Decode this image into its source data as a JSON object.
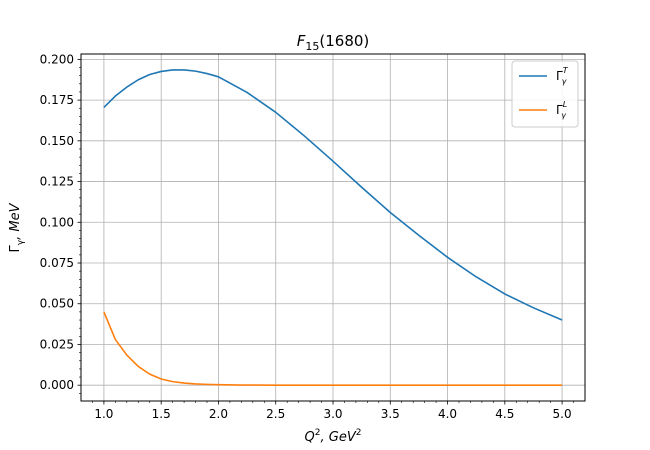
{
  "chart_data": {
    "type": "line",
    "title": {
      "main": "F",
      "sub": "15",
      "tail": "(1680)"
    },
    "xlabel": {
      "q": "Q",
      "sup1": "2",
      "mid": ", GeV",
      "sup2": "2"
    },
    "ylabel": {
      "main": "Γ",
      "sub": "γ",
      "tail": ", MeV"
    },
    "xlim": [
      0.8,
      5.2
    ],
    "ylim": [
      -0.0097,
      0.2033
    ],
    "x_ticks": [
      1.0,
      1.5,
      2.0,
      2.5,
      3.0,
      3.5,
      4.0,
      4.5,
      5.0
    ],
    "x_tick_labels": [
      "1.0",
      "1.5",
      "2.0",
      "2.5",
      "3.0",
      "3.5",
      "4.0",
      "4.5",
      "5.0"
    ],
    "y_ticks": [
      0.0,
      0.025,
      0.05,
      0.075,
      0.1,
      0.125,
      0.15,
      0.175,
      0.2
    ],
    "y_tick_labels": [
      "0.000",
      "0.025",
      "0.050",
      "0.075",
      "0.100",
      "0.125",
      "0.150",
      "0.175",
      "0.200"
    ],
    "grid": true,
    "legend_position": "top-right",
    "series": [
      {
        "name": {
          "base": "Γ",
          "sup": "T",
          "sub": "γ"
        },
        "color": "#1f77b4",
        "x": [
          1.0,
          1.1,
          1.2,
          1.3,
          1.4,
          1.5,
          1.6,
          1.7,
          1.8,
          1.9,
          2.0,
          2.25,
          2.5,
          2.75,
          3.0,
          3.25,
          3.5,
          3.75,
          4.0,
          4.25,
          4.5,
          4.75,
          5.0
        ],
        "values": [
          0.1705,
          0.1775,
          0.183,
          0.1875,
          0.1907,
          0.1926,
          0.1935,
          0.1935,
          0.1928,
          0.1913,
          0.1893,
          0.1797,
          0.1675,
          0.153,
          0.1375,
          0.1215,
          0.106,
          0.092,
          0.0785,
          0.0665,
          0.056,
          0.0475,
          0.04
        ]
      },
      {
        "name": {
          "base": "Γ",
          "sup": "L",
          "sub": "γ"
        },
        "color": "#ff7f0e",
        "x": [
          1.0,
          1.1,
          1.2,
          1.3,
          1.4,
          1.5,
          1.6,
          1.7,
          1.8,
          1.9,
          2.0,
          2.2,
          2.5,
          3.0,
          3.5,
          4.0,
          4.5,
          5.0
        ],
        "values": [
          0.045,
          0.028,
          0.0185,
          0.0115,
          0.0068,
          0.0038,
          0.0022,
          0.0013,
          0.0008,
          0.0005,
          0.0003,
          0.0001,
          0.0,
          0.0,
          0.0,
          0.0,
          0.0,
          0.0
        ]
      }
    ]
  }
}
